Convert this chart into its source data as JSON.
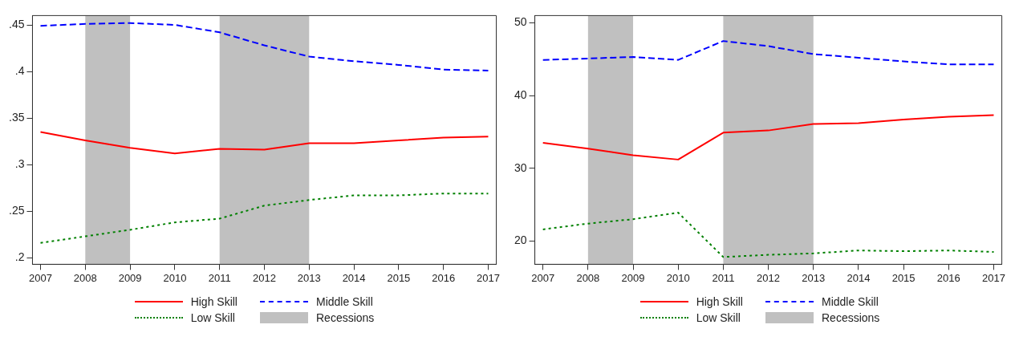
{
  "chart_data": [
    {
      "type": "line",
      "x": [
        2007,
        2008,
        2009,
        2010,
        2011,
        2012,
        2013,
        2014,
        2015,
        2016,
        2017
      ],
      "xlim": [
        2006.82,
        2017.18
      ],
      "xticks": [
        2007,
        2008,
        2009,
        2010,
        2011,
        2012,
        2013,
        2014,
        2015,
        2016,
        2017
      ],
      "ylim": [
        0.193,
        0.46
      ],
      "yticks": [
        {
          "value": 0.2,
          "label": ".2"
        },
        {
          "value": 0.25,
          "label": ".25"
        },
        {
          "value": 0.3,
          "label": ".3"
        },
        {
          "value": 0.35,
          "label": ".35"
        },
        {
          "value": 0.4,
          "label": ".4"
        },
        {
          "value": 0.45,
          "label": ".45"
        }
      ],
      "grid": false,
      "legend": "bottom",
      "series": [
        {
          "name": "High Skill",
          "color": "#ff0000",
          "line_style": "solid",
          "values": [
            0.335,
            0.326,
            0.318,
            0.312,
            0.317,
            0.316,
            0.323,
            0.323,
            0.326,
            0.329,
            0.33
          ]
        },
        {
          "name": "Middle Skill",
          "color": "#0000ff",
          "line_style": "dashed",
          "values": [
            0.449,
            0.451,
            0.452,
            0.45,
            0.442,
            0.428,
            0.416,
            0.411,
            0.407,
            0.402,
            0.401
          ]
        },
        {
          "name": "Low Skill",
          "color": "#008000",
          "line_style": "dotted",
          "values": [
            0.216,
            0.223,
            0.23,
            0.238,
            0.242,
            0.256,
            0.262,
            0.267,
            0.267,
            0.269,
            0.269
          ]
        }
      ],
      "bands": [
        {
          "axis": "x",
          "from": 2008,
          "to": 2009,
          "label": "Recessions",
          "color": "#c0c0c0"
        },
        {
          "axis": "x",
          "from": 2011,
          "to": 2013,
          "color": "#c0c0c0"
        }
      ]
    },
    {
      "type": "line",
      "x": [
        2007,
        2008,
        2009,
        2010,
        2011,
        2012,
        2013,
        2014,
        2015,
        2016,
        2017
      ],
      "xlim": [
        2006.82,
        2017.18
      ],
      "xticks": [
        2007,
        2008,
        2009,
        2010,
        2011,
        2012,
        2013,
        2014,
        2015,
        2016,
        2017
      ],
      "ylim": [
        16.8,
        51
      ],
      "yticks": [
        20,
        30,
        40,
        50
      ],
      "grid": false,
      "legend": "bottom",
      "series": [
        {
          "name": "High Skill",
          "color": "#ff0000",
          "line_style": "solid",
          "values": [
            33.5,
            32.7,
            31.8,
            31.2,
            34.9,
            35.2,
            36.1,
            36.2,
            36.7,
            37.1,
            37.3
          ]
        },
        {
          "name": "Middle Skill",
          "color": "#0000ff",
          "line_style": "dashed",
          "values": [
            44.9,
            45.1,
            45.3,
            44.9,
            47.5,
            46.8,
            45.7,
            45.2,
            44.7,
            44.3,
            44.3
          ]
        },
        {
          "name": "Low Skill",
          "color": "#008000",
          "line_style": "dotted",
          "values": [
            21.6,
            22.4,
            23,
            23.9,
            17.8,
            18.1,
            18.3,
            18.7,
            18.6,
            18.7,
            18.5
          ]
        }
      ],
      "bands": [
        {
          "axis": "x",
          "from": 2008,
          "to": 2009,
          "label": "Recessions",
          "color": "#c0c0c0"
        },
        {
          "axis": "x",
          "from": 2011,
          "to": 2013,
          "color": "#c0c0c0"
        }
      ]
    }
  ]
}
